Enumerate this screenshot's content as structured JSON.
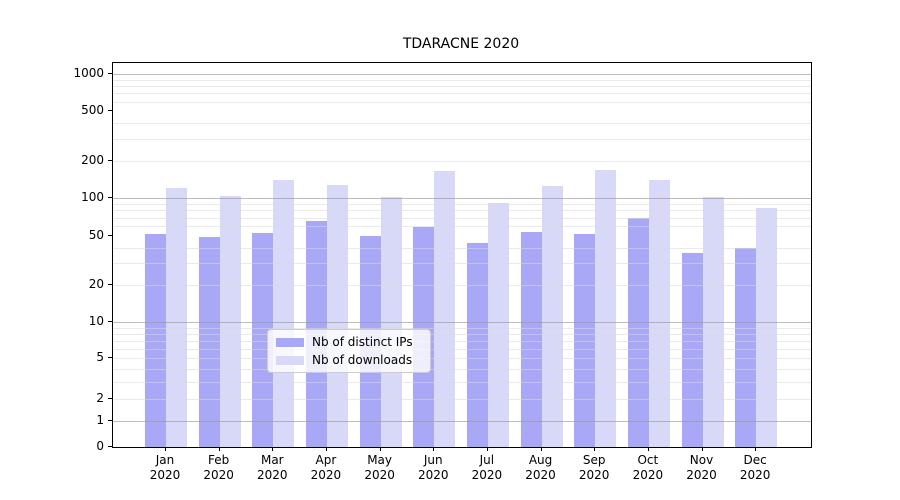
{
  "chart_data": {
    "type": "bar",
    "title": "TDARACNE 2020",
    "categories": [
      "Jan",
      "Feb",
      "Mar",
      "Apr",
      "May",
      "Jun",
      "Jul",
      "Aug",
      "Sep",
      "Oct",
      "Nov",
      "Dec"
    ],
    "category_year": "2020",
    "series": [
      {
        "name": "Nb of distinct IPs",
        "color": "#a8a8f6",
        "values": [
          52,
          49,
          53,
          66,
          50,
          59,
          44,
          54,
          52,
          69,
          36,
          40
        ]
      },
      {
        "name": "Nb of downloads",
        "color": "#d8d8f8",
        "values": [
          120,
          105,
          140,
          129,
          103,
          165,
          91,
          125,
          170,
          140,
          102,
          84
        ]
      }
    ],
    "xlabel": "",
    "ylabel": "",
    "yscale": "asinh",
    "ylim": [
      0,
      1225
    ],
    "y_ticks": [
      0,
      1,
      2,
      5,
      10,
      20,
      50,
      100,
      200,
      500,
      1000
    ],
    "y_major_gridlines": [
      1,
      10,
      100,
      1000
    ],
    "y_minor_gridlines": [
      2,
      3,
      4,
      5,
      6,
      7,
      8,
      9,
      20,
      30,
      40,
      60,
      70,
      80,
      90,
      200,
      300,
      400,
      600,
      700,
      800,
      900
    ],
    "grid": true,
    "grid_major_color": "#9a9a9a",
    "grid_minor_color": "#d9d9d9",
    "legend_position": "lower-center",
    "legend_labels": [
      "Nb of distinct IPs",
      "Nb of downloads"
    ]
  }
}
